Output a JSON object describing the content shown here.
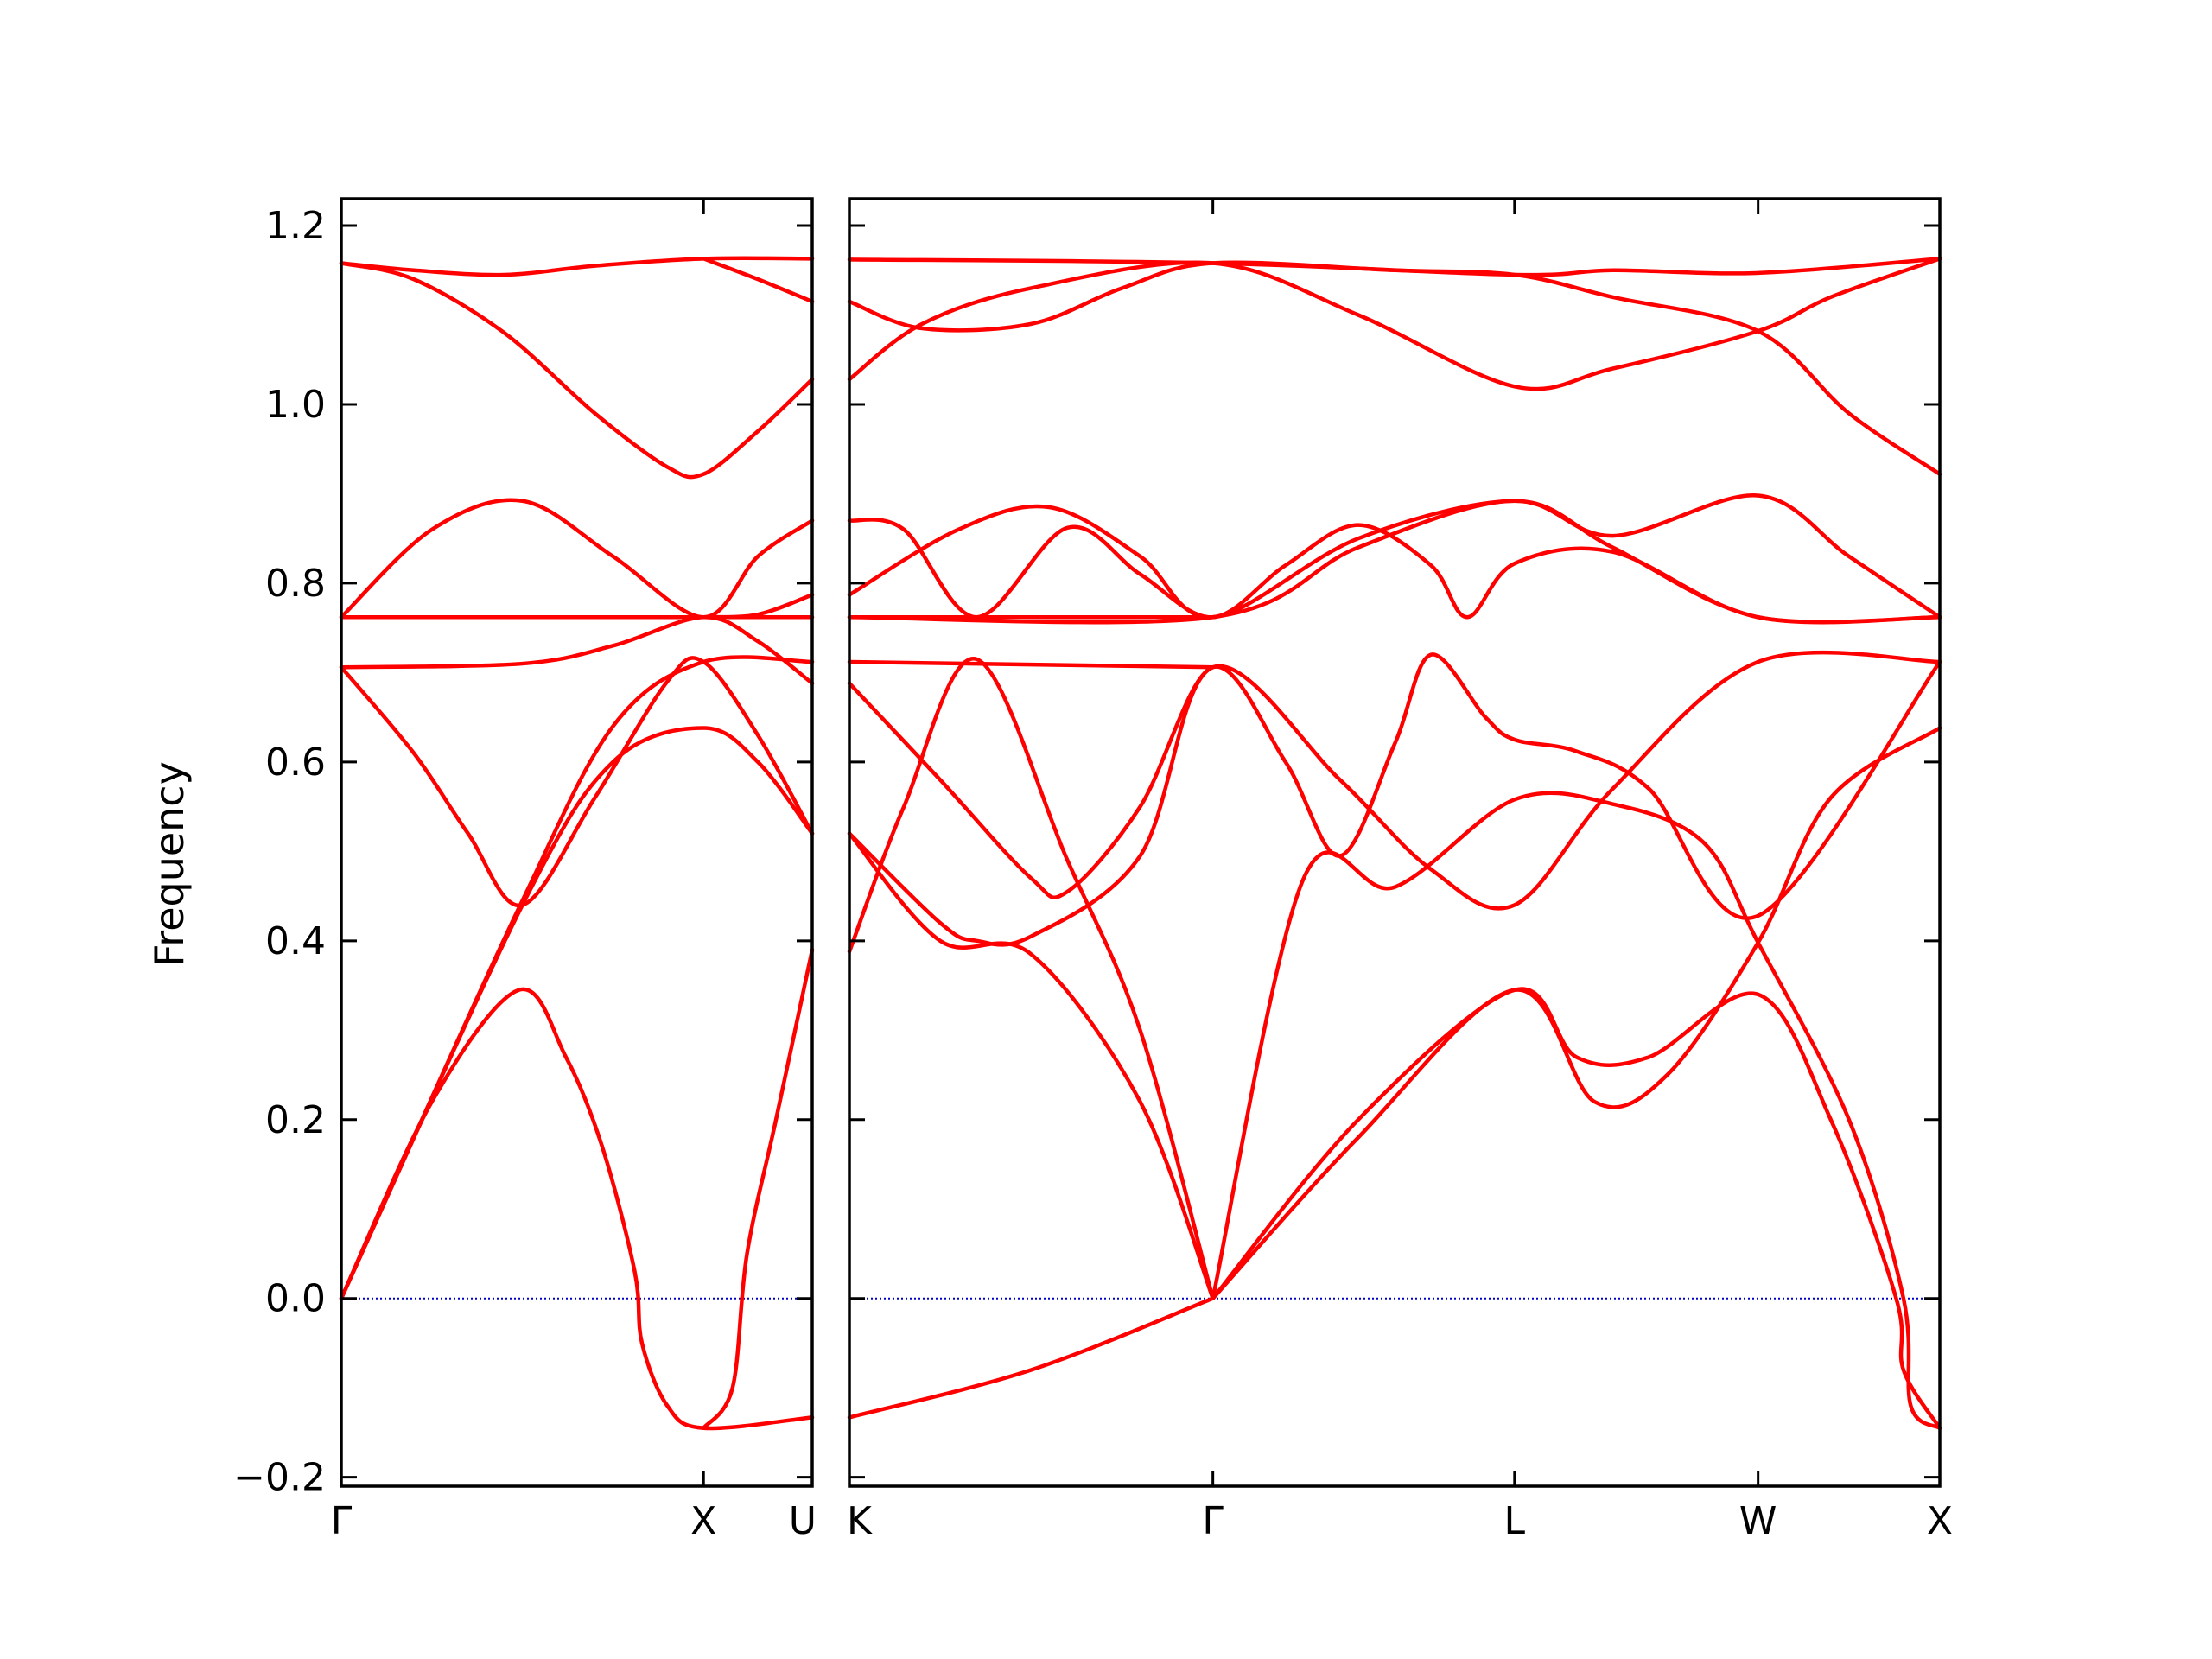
{
  "chart_data": {
    "type": "line",
    "ylabel": "Frequency",
    "ylim": [
      -0.21,
      1.23
    ],
    "yticks": [
      "1.2",
      "1.0",
      "0.8",
      "0.6",
      "0.4",
      "0.2",
      "0.0",
      "−0.2"
    ],
    "ytick_values": [
      1.2,
      1.0,
      0.8,
      0.6,
      0.4,
      0.2,
      0.0,
      -0.2
    ],
    "line_color": "#ff0000",
    "zero_line_color": "#0000cc",
    "panels": [
      {
        "name": "left",
        "xlim": [
          0,
          1.3
        ],
        "xticks": [
          {
            "x": 0,
            "label": "Γ"
          },
          {
            "x": 1.0,
            "label": "X"
          },
          {
            "x": 1.3,
            "label": "U"
          }
        ],
        "bands": [
          [
            [
              0,
              1.158
            ],
            [
              0.2,
              1.15
            ],
            [
              0.45,
              1.145
            ],
            [
              0.7,
              1.155
            ],
            [
              1.0,
              1.163
            ],
            [
              1.3,
              1.163
            ]
          ],
          [
            [
              0,
              1.158
            ],
            [
              0.2,
              1.14
            ],
            [
              0.45,
              1.08
            ],
            [
              0.7,
              0.99
            ],
            [
              0.9,
              0.93
            ],
            [
              1.0,
              0.922
            ],
            [
              1.15,
              0.97
            ],
            [
              1.3,
              1.028
            ]
          ],
          [
            [
              1.0,
              1.163
            ],
            [
              1.15,
              1.14
            ],
            [
              1.3,
              1.115
            ]
          ],
          [
            [
              0,
              0.762
            ],
            [
              0.25,
              0.86
            ],
            [
              0.5,
              0.892
            ],
            [
              0.75,
              0.83
            ],
            [
              1.0,
              0.762
            ],
            [
              1.15,
              0.83
            ],
            [
              1.3,
              0.87
            ]
          ],
          [
            [
              0,
              0.762
            ],
            [
              1.0,
              0.762
            ],
            [
              1.3,
              0.762
            ]
          ],
          [
            [
              1.0,
              0.762
            ],
            [
              1.15,
              0.765
            ],
            [
              1.3,
              0.787
            ]
          ],
          [
            [
              0,
              0.706
            ],
            [
              0.5,
              0.71
            ],
            [
              0.75,
              0.73
            ],
            [
              1.0,
              0.762
            ],
            [
              1.15,
              0.735
            ],
            [
              1.3,
              0.688
            ]
          ],
          [
            [
              0,
              0.706
            ],
            [
              0.2,
              0.61
            ],
            [
              0.35,
              0.52
            ],
            [
              0.5,
              0.44
            ],
            [
              0.7,
              0.56
            ],
            [
              0.9,
              0.69
            ],
            [
              1.0,
              0.712
            ],
            [
              1.15,
              0.63
            ],
            [
              1.3,
              0.52
            ]
          ],
          [
            [
              0,
              0
            ],
            [
              0.5,
              0.44
            ],
            [
              0.75,
              0.6
            ],
            [
              1.0,
              0.638
            ],
            [
              1.15,
              0.6
            ],
            [
              1.3,
              0.52
            ]
          ],
          [
            [
              0,
              0
            ],
            [
              0.2,
              0.18
            ],
            [
              0.5,
              0.445
            ],
            [
              0.75,
              0.64
            ],
            [
              1.0,
              0.712
            ],
            [
              1.3,
              0.712
            ]
          ],
          [
            [
              0,
              0
            ],
            [
              0.25,
              0.22
            ],
            [
              0.49,
              0.345
            ],
            [
              0.62,
              0.27
            ],
            [
              0.72,
              0.17
            ],
            [
              0.81,
              0.03
            ],
            [
              0.83,
              -0.05
            ],
            [
              0.9,
              -0.12
            ],
            [
              1.0,
              -0.145
            ],
            [
              1.3,
              -0.133
            ]
          ],
          [
            [
              1.0,
              -0.145
            ],
            [
              1.08,
              -0.1
            ],
            [
              1.12,
              0.05
            ],
            [
              1.2,
              0.2
            ],
            [
              1.3,
              0.39
            ]
          ]
        ]
      },
      {
        "name": "right",
        "xlim": [
          0,
          3.0
        ],
        "xticks": [
          {
            "x": 0,
            "label": "K"
          },
          {
            "x": 1.0,
            "label": "Γ"
          },
          {
            "x": 1.83,
            "label": "L"
          },
          {
            "x": 2.5,
            "label": "W"
          },
          {
            "x": 3.0,
            "label": "X"
          }
        ],
        "bands": [
          [
            [
              0,
              1.162
            ],
            [
              1.0,
              1.158
            ],
            [
              1.83,
              1.145
            ],
            [
              2.1,
              1.15
            ],
            [
              2.5,
              1.147
            ],
            [
              3.0,
              1.163
            ]
          ],
          [
            [
              0,
              1.028
            ],
            [
              0.2,
              1.09
            ],
            [
              0.5,
              1.13
            ],
            [
              1.0,
              1.158
            ],
            [
              1.4,
              1.1
            ],
            [
              1.83,
              1.02
            ],
            [
              2.1,
              1.04
            ],
            [
              2.5,
              1.082
            ],
            [
              2.7,
              1.12
            ],
            [
              3.0,
              1.163
            ]
          ],
          [
            [
              0,
              1.115
            ],
            [
              0.2,
              1.085
            ],
            [
              0.5,
              1.09
            ],
            [
              0.75,
              1.13
            ],
            [
              1.0,
              1.158
            ],
            [
              1.5,
              1.15
            ],
            [
              1.83,
              1.145
            ],
            [
              2.1,
              1.12
            ],
            [
              2.5,
              1.082
            ],
            [
              2.75,
              0.99
            ],
            [
              3.0,
              0.922
            ]
          ],
          [
            [
              0,
              0.87
            ],
            [
              0.15,
              0.86
            ],
            [
              0.35,
              0.762
            ],
            [
              0.6,
              0.862
            ],
            [
              0.8,
              0.81
            ],
            [
              1.0,
              0.762
            ],
            [
              1.2,
              0.82
            ],
            [
              1.4,
              0.865
            ],
            [
              1.6,
              0.82
            ],
            [
              1.7,
              0.762
            ],
            [
              1.83,
              0.822
            ],
            [
              2.1,
              0.835
            ],
            [
              2.5,
              0.762
            ],
            [
              3.0,
              0.762
            ]
          ],
          [
            [
              0,
              0.787
            ],
            [
              0.3,
              0.86
            ],
            [
              0.55,
              0.885
            ],
            [
              0.8,
              0.83
            ],
            [
              1.0,
              0.762
            ],
            [
              1.4,
              0.85
            ],
            [
              1.83,
              0.892
            ],
            [
              2.1,
              0.853
            ],
            [
              2.5,
              0.898
            ],
            [
              2.75,
              0.83
            ],
            [
              3.0,
              0.762
            ]
          ],
          [
            [
              0,
              0.762
            ],
            [
              1.0,
              0.762
            ],
            [
              1.4,
              0.84
            ],
            [
              1.83,
              0.892
            ],
            [
              2.1,
              0.84
            ],
            [
              2.5,
              0.762
            ],
            [
              3.0,
              0.762
            ]
          ],
          [
            [
              0,
              0.762
            ],
            [
              1.0,
              0.762
            ]
          ],
          [
            [
              0,
              0.712
            ],
            [
              1.0,
              0.706
            ]
          ],
          [
            [
              0,
              0.688
            ],
            [
              0.25,
              0.58
            ],
            [
              0.5,
              0.47
            ],
            [
              0.6,
              0.455
            ],
            [
              0.8,
              0.55
            ],
            [
              1.0,
              0.706
            ],
            [
              1.2,
              0.6
            ],
            [
              1.35,
              0.495
            ],
            [
              1.5,
              0.62
            ],
            [
              1.6,
              0.72
            ],
            [
              1.75,
              0.65
            ],
            [
              1.83,
              0.625
            ],
            [
              2.0,
              0.612
            ],
            [
              2.2,
              0.57
            ],
            [
              2.5,
              0.428
            ],
            [
              3.0,
              0.712
            ]
          ],
          [
            [
              0,
              0.52
            ],
            [
              0.25,
              0.42
            ],
            [
              0.35,
              0.4
            ],
            [
              0.5,
              0.405
            ],
            [
              0.8,
              0.495
            ],
            [
              1.0,
              0.706
            ],
            [
              1.35,
              0.58
            ],
            [
              1.6,
              0.48
            ],
            [
              1.83,
              0.44
            ],
            [
              2.1,
              0.57
            ],
            [
              2.5,
              0.712
            ],
            [
              3.0,
              0.712
            ]
          ],
          [
            [
              0,
              0.388
            ],
            [
              0.15,
              0.55
            ],
            [
              0.35,
              0.715
            ],
            [
              0.6,
              0.49
            ],
            [
              0.8,
              0.3
            ],
            [
              1.0,
              0.0
            ]
          ],
          [
            [
              0,
              0.52
            ],
            [
              0.25,
              0.4
            ],
            [
              0.5,
              0.385
            ],
            [
              0.8,
              0.22
            ],
            [
              1.0,
              0.0
            ]
          ],
          [
            [
              1.0,
              0.0
            ],
            [
              1.25,
              0.47
            ],
            [
              1.5,
              0.46
            ],
            [
              1.83,
              0.558
            ],
            [
              2.1,
              0.553
            ],
            [
              2.35,
              0.51
            ],
            [
              2.5,
              0.398
            ],
            [
              2.75,
              0.2
            ],
            [
              2.9,
              0.0
            ],
            [
              2.92,
              -0.12
            ],
            [
              3.0,
              -0.145
            ]
          ],
          [
            [
              1.0,
              0.0
            ],
            [
              1.4,
              0.2
            ],
            [
              1.83,
              0.345
            ],
            [
              2.0,
              0.27
            ],
            [
              2.2,
              0.27
            ],
            [
              2.5,
              0.34
            ],
            [
              2.7,
              0.2
            ],
            [
              2.88,
              0.0
            ],
            [
              2.9,
              -0.08
            ],
            [
              3.0,
              -0.145
            ]
          ],
          [
            [
              1.0,
              0.0
            ],
            [
              1.4,
              0.18
            ],
            [
              1.83,
              0.345
            ],
            [
              2.05,
              0.22
            ],
            [
              2.25,
              0.25
            ],
            [
              2.5,
              0.398
            ],
            [
              2.7,
              0.56
            ],
            [
              3.0,
              0.638
            ]
          ],
          [
            [
              0,
              -0.133
            ],
            [
              0.5,
              -0.08
            ],
            [
              1.0,
              0.0
            ]
          ]
        ]
      }
    ]
  }
}
